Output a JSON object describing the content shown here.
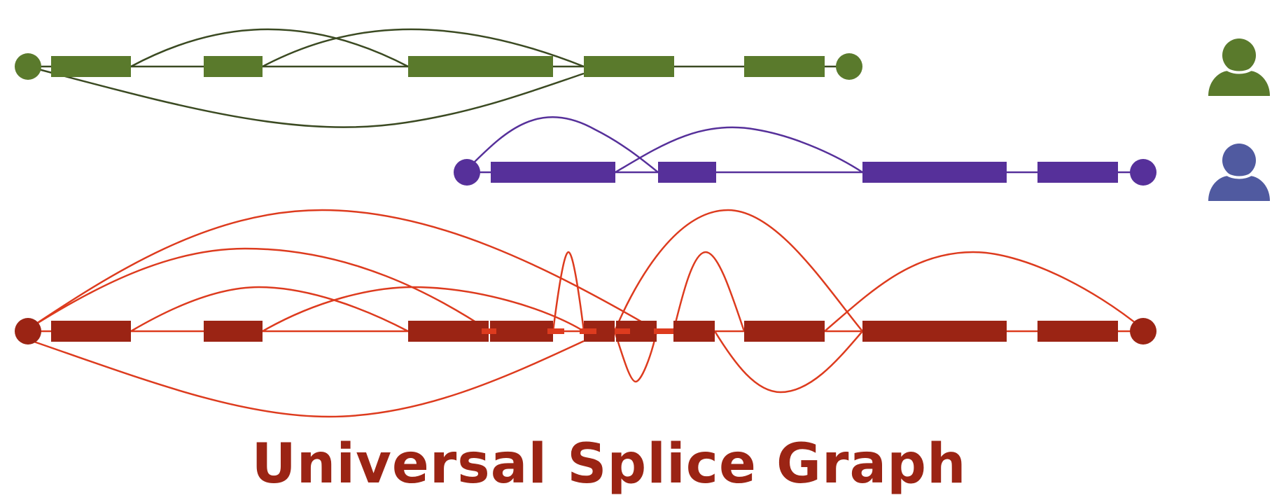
{
  "title": "Universal Splice Graph",
  "colors": {
    "graph_a": "#5a7a2c",
    "graph_a_edge": "#3b4a22",
    "graph_b": "#56309a",
    "universal": "#9b2414",
    "universal_edge": "#dd3b1e",
    "person_a": "#5a7a2c",
    "person_b": "#505aa0",
    "title": "#9b2414"
  },
  "graphs": [
    {
      "name": "sample-graph-green",
      "color_key": "graph_a",
      "edge_color_key": "graph_a_edge",
      "person_icon": "person-icon-green"
    },
    {
      "name": "sample-graph-purple",
      "color_key": "graph_b",
      "edge_color_key": "graph_b",
      "person_icon": "person-icon-purple"
    },
    {
      "name": "universal-splice-graph",
      "color_key": "universal",
      "edge_color_key": "universal_edge",
      "person_icon": ""
    }
  ]
}
